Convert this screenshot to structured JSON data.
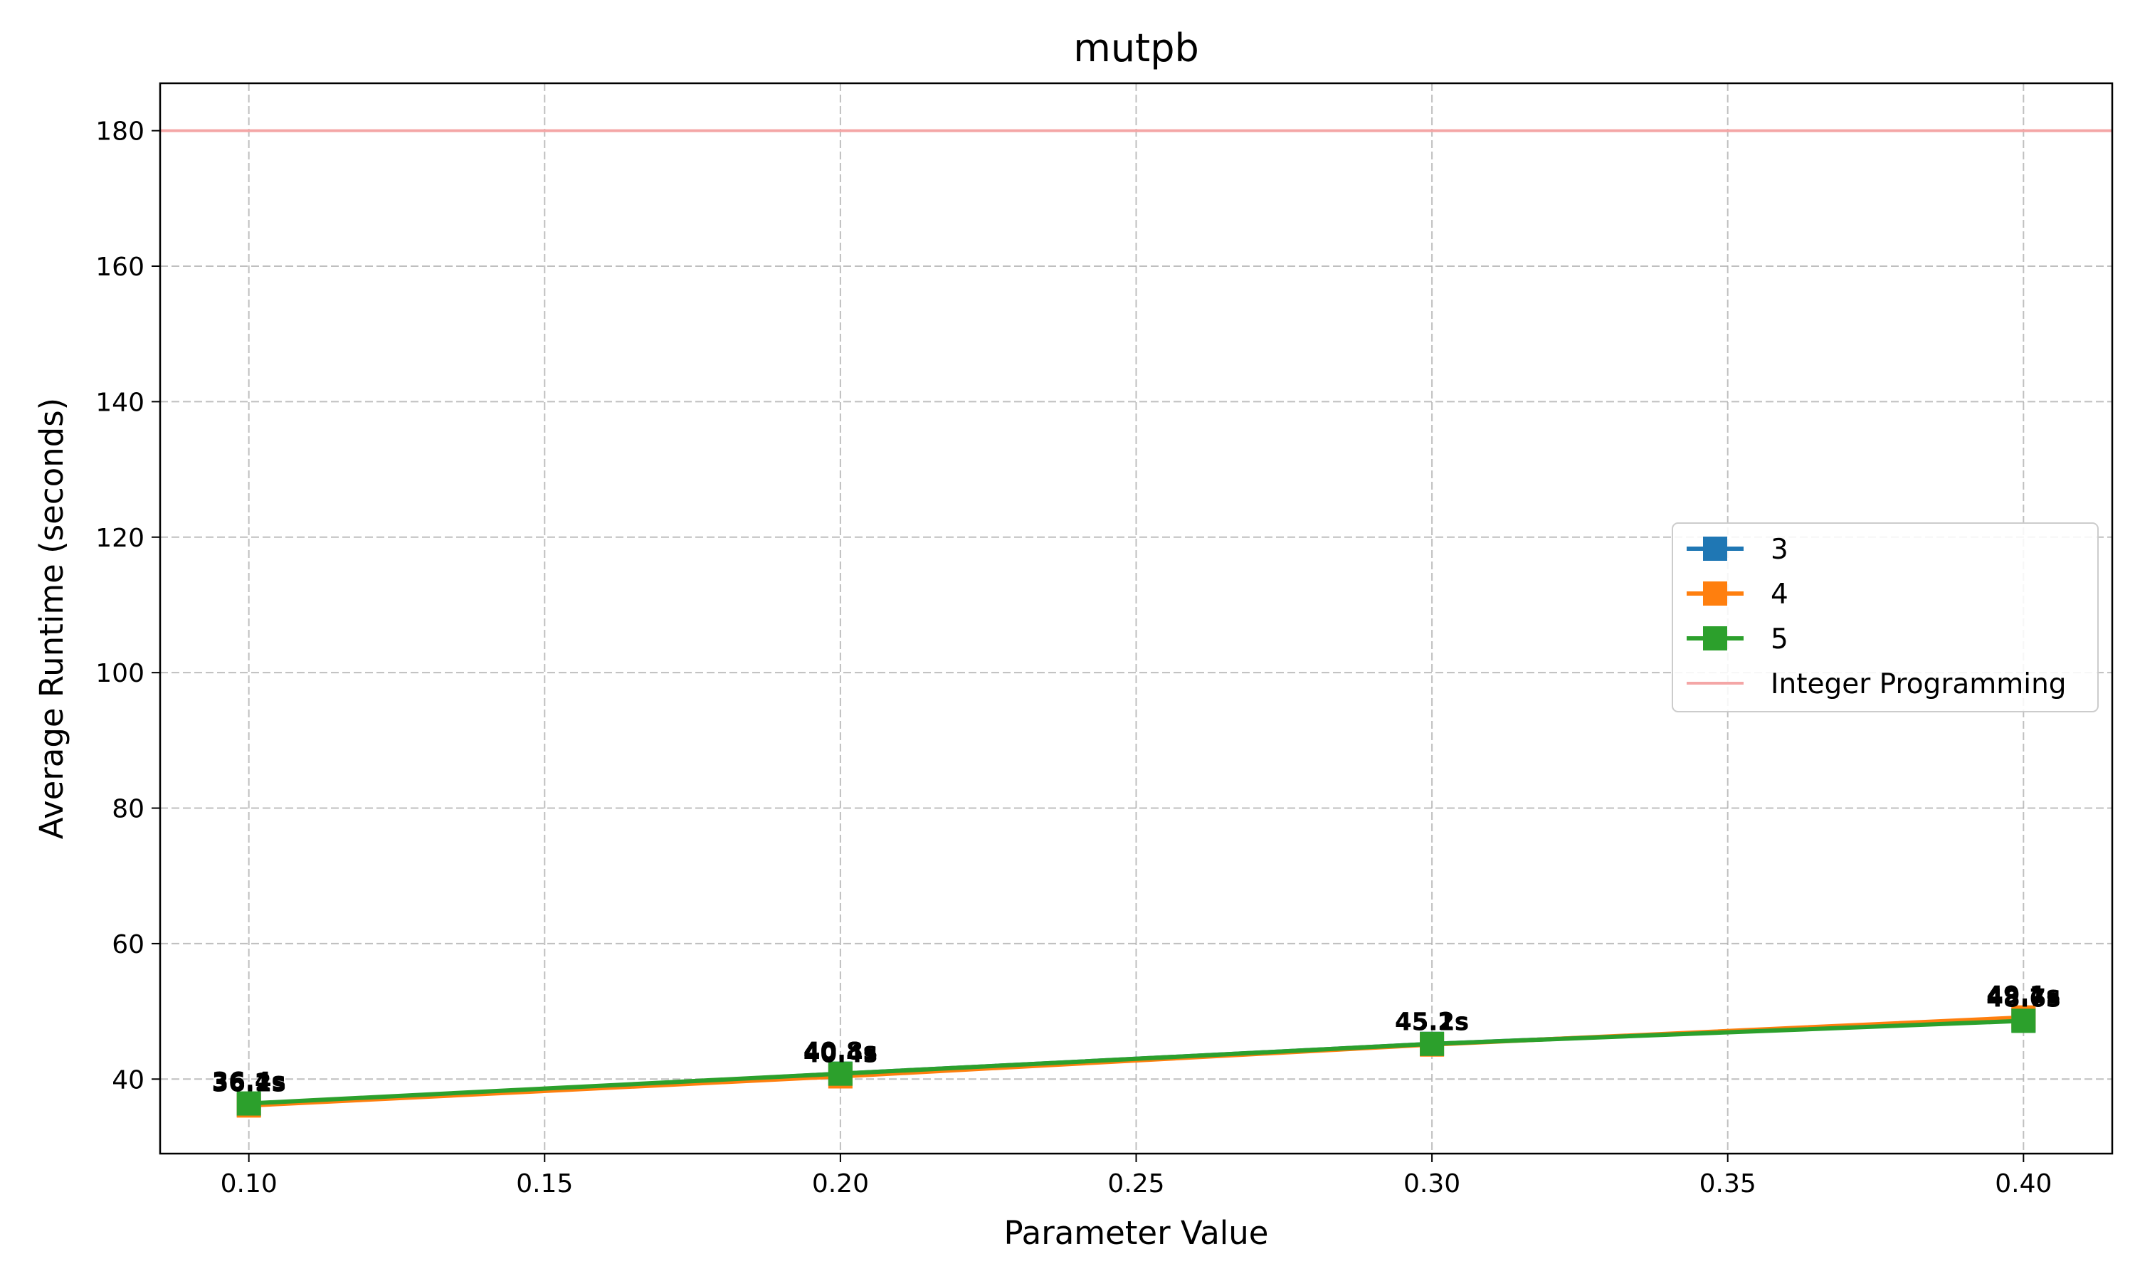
{
  "chart_data": {
    "type": "line",
    "title": "mutpb",
    "xlabel": "Parameter Value",
    "ylabel": "Average Runtime (seconds)",
    "x": [
      0.1,
      0.2,
      0.3,
      0.4
    ],
    "x_tick_values": [
      0.1,
      0.15,
      0.2,
      0.25,
      0.3,
      0.35,
      0.4
    ],
    "x_tick_labels": [
      "0.10",
      "0.15",
      "0.20",
      "0.25",
      "0.30",
      "0.35",
      "0.40"
    ],
    "y_tick_values": [
      40,
      60,
      80,
      100,
      120,
      140,
      160,
      180
    ],
    "y_tick_labels": [
      "40",
      "60",
      "80",
      "100",
      "120",
      "140",
      "160",
      "180"
    ],
    "xlim": [
      0.085,
      0.415
    ],
    "ylim": [
      29,
      187
    ],
    "grid": true,
    "legend_position": "center-right",
    "series": [
      {
        "name": "3",
        "color": "#1f77b4",
        "values": [
          36.2,
          40.8,
          45.2,
          48.7
        ],
        "labels": [
          "36.2s",
          "40.8s",
          "45.2s",
          "48.7s"
        ]
      },
      {
        "name": "4",
        "color": "#ff7f0e",
        "values": [
          36.1,
          40.4,
          45.1,
          49.1
        ],
        "labels": [
          "36.1s",
          "40.4s",
          "45.1s",
          "49.1s"
        ]
      },
      {
        "name": "5",
        "color": "#2ca02c",
        "values": [
          36.4,
          40.8,
          45.2,
          48.6
        ],
        "labels": [
          "36.4s",
          "40.8s",
          "45.2s",
          "48.6s"
        ]
      }
    ],
    "reference_line": {
      "name": "Integer Programming",
      "value": 180,
      "color": "#f4a6a6"
    }
  }
}
